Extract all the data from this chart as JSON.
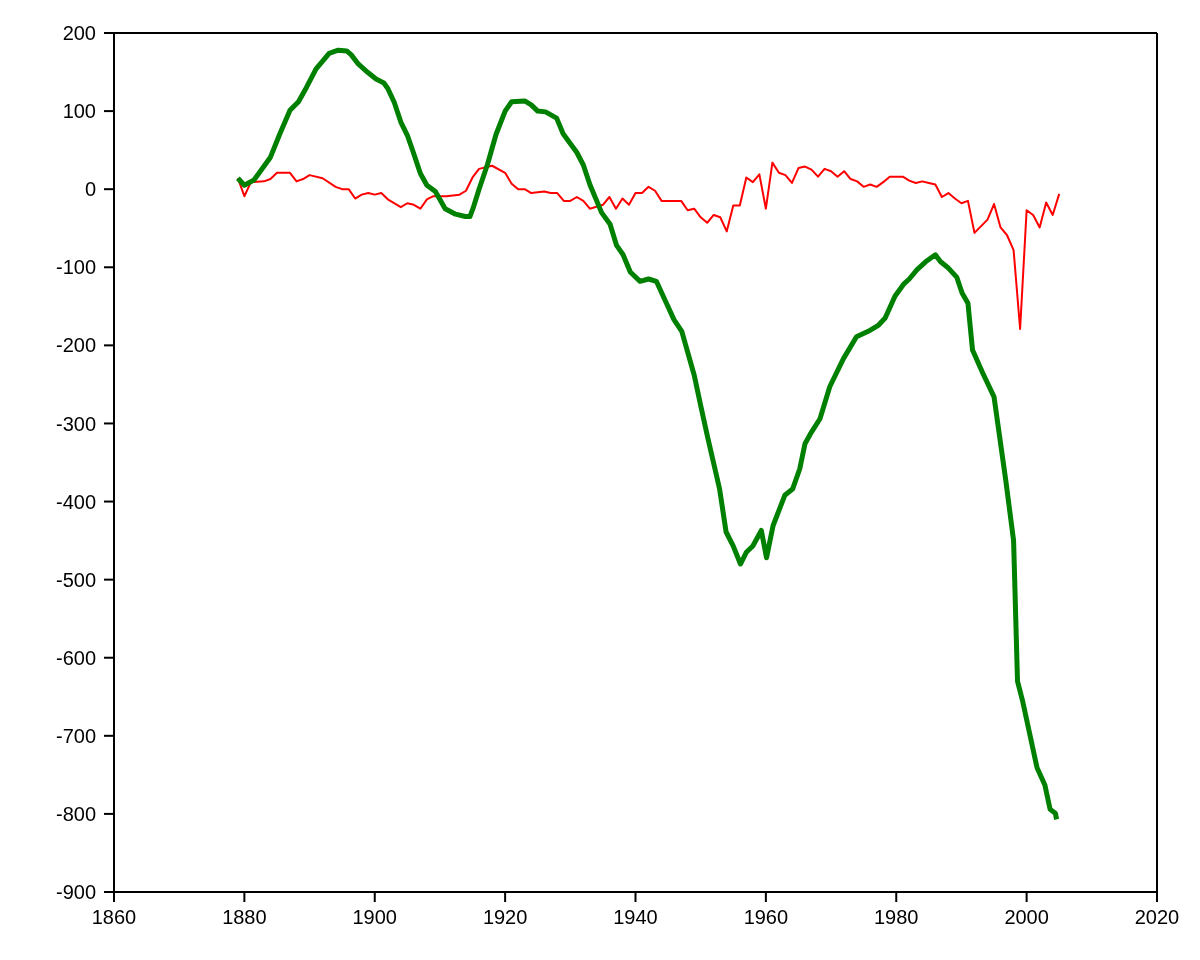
{
  "chart_data": {
    "type": "line",
    "xlim": [
      1860,
      2020
    ],
    "xticks": [
      1860,
      1880,
      1900,
      1920,
      1940,
      1960,
      1980,
      2000,
      2020
    ],
    "ylim": [
      -900,
      200
    ],
    "yticks": [
      -900,
      -800,
      -700,
      -600,
      -500,
      -400,
      -300,
      -200,
      -100,
      0,
      100,
      200
    ],
    "grid": false,
    "legend": false,
    "marker": "none",
    "line_style": "solid",
    "series": [
      {
        "color": "#ff0000",
        "x": [
          1879,
          1880,
          1881,
          1883,
          1884,
          1885,
          1887,
          1888,
          1889,
          1890,
          1892,
          1894,
          1895,
          1896,
          1897,
          1898,
          1899,
          1900,
          1901,
          1902,
          1904,
          1905,
          1906,
          1907,
          1908,
          1909,
          1911,
          1913,
          1914,
          1915,
          1916,
          1918,
          1920,
          1921,
          1922,
          1923,
          1924,
          1926,
          1927,
          1928,
          1929,
          1930,
          1931,
          1932,
          1933,
          1935,
          1936,
          1937,
          1938,
          1939,
          1940,
          1941,
          1942,
          1943,
          1944,
          1947,
          1948,
          1949,
          1950,
          1951,
          1952,
          1953,
          1954,
          1955,
          1956,
          1957,
          1958,
          1959,
          1960,
          1961,
          1962,
          1963,
          1964,
          1965,
          1966,
          1967,
          1968,
          1969,
          1970,
          1971,
          1972,
          1973,
          1974,
          1975,
          1976,
          1977,
          1978,
          1979,
          1981,
          1982,
          1983,
          1984,
          1985,
          1986,
          1987,
          1988,
          1989,
          1990,
          1991,
          1992,
          1994,
          1995,
          1996,
          1997,
          1998,
          1999,
          2000,
          2001,
          2002,
          2003,
          2004,
          2005
        ],
        "values": [
          14,
          -9,
          9,
          10,
          13,
          21,
          21,
          10,
          13,
          18,
          14,
          3,
          0,
          0,
          -12,
          -7,
          -5,
          -7,
          -5,
          -13,
          -23,
          -18,
          -20,
          -25,
          -13,
          -9,
          -9,
          -7,
          -2,
          15,
          26,
          30,
          21,
          7,
          0,
          0,
          -5,
          -3,
          -5,
          -5,
          -15,
          -15,
          -10,
          -15,
          -25,
          -20,
          -10,
          -25,
          -12,
          -20,
          -5,
          -5,
          3,
          -2,
          -15,
          -15,
          -27,
          -25,
          -36,
          -43,
          -33,
          -36,
          -54,
          -21,
          -21,
          15,
          9,
          19,
          -25,
          34,
          21,
          18,
          8,
          27,
          29,
          25,
          16,
          26,
          23,
          16,
          23,
          13,
          10,
          3,
          6,
          3,
          9,
          16,
          16,
          11,
          8,
          10,
          8,
          6,
          -10,
          -5,
          -12,
          -18,
          -15,
          -56,
          -39,
          -19,
          -49,
          -59,
          -78,
          -179,
          -27,
          -33,
          -49,
          -17,
          -33,
          -6
        ]
      },
      {
        "color": "#008000",
        "x": [
          1879,
          1880,
          1881.5,
          1884,
          1885.4,
          1887,
          1888.3,
          1889.5,
          1891,
          1893,
          1894.4,
          1895.7,
          1896.4,
          1897.5,
          1899,
          1900.2,
          1901.4,
          1902,
          1903,
          1904,
          1905,
          1906,
          1907,
          1908,
          1909.3,
          1910.8,
          1912.4,
          1913.9,
          1914.6,
          1915.1,
          1916,
          1917.3,
          1918.6,
          1920,
          1921,
          1923,
          1924,
          1925,
          1926.2,
          1927.9,
          1928.9,
          1931,
          1932,
          1933,
          1934.8,
          1936.1,
          1937.1,
          1938.1,
          1939.2,
          1940.7,
          1942,
          1943.2,
          1944.8,
          1945.9,
          1947.1,
          1949,
          1950,
          1951,
          1952.9,
          1953.9,
          1955,
          1956.1,
          1957,
          1958,
          1959.3,
          1960.1,
          1961.1,
          1962.9,
          1964.1,
          1965.2,
          1966,
          1967,
          1968.3,
          1969.8,
          1971.9,
          1973.9,
          1975.7,
          1977.3,
          1978.3,
          1979.8,
          1981.1,
          1982,
          1983.2,
          1984.5,
          1986,
          1986.8,
          1988,
          1989.3,
          1990.1,
          1991,
          1991.7,
          1993.3,
          1995,
          1996.8,
          1998,
          1998.6,
          1999.4,
          2001.6,
          2002.8,
          2003.6,
          2004.4,
          2004.6
        ],
        "values": [
          14,
          5,
          12,
          41,
          70,
          101,
          112,
          130,
          154,
          174,
          178,
          177,
          172,
          160,
          149,
          141,
          136,
          129,
          111,
          86,
          69,
          45,
          20,
          5,
          -3,
          -25,
          -32,
          -35,
          -35,
          -24,
          0,
          32,
          70,
          100,
          112,
          113,
          108,
          100,
          99,
          91,
          71,
          47,
          31,
          6,
          -30,
          -45,
          -72,
          -84,
          -106,
          -118,
          -115,
          -118,
          -147,
          -167,
          -182,
          -238,
          -277,
          -315,
          -384,
          -439,
          -457,
          -480,
          -465,
          -457,
          -437,
          -472,
          -431,
          -392,
          -384,
          -358,
          -326,
          -311,
          -294,
          -253,
          -217,
          -189,
          -182,
          -174,
          -165,
          -137,
          -122,
          -115,
          -103,
          -93,
          -84,
          -93,
          -101,
          -113,
          -133,
          -146,
          -206,
          -236,
          -266,
          -373,
          -450,
          -630,
          -656,
          -741,
          -763,
          -794,
          -799,
          -807
        ]
      }
    ]
  }
}
